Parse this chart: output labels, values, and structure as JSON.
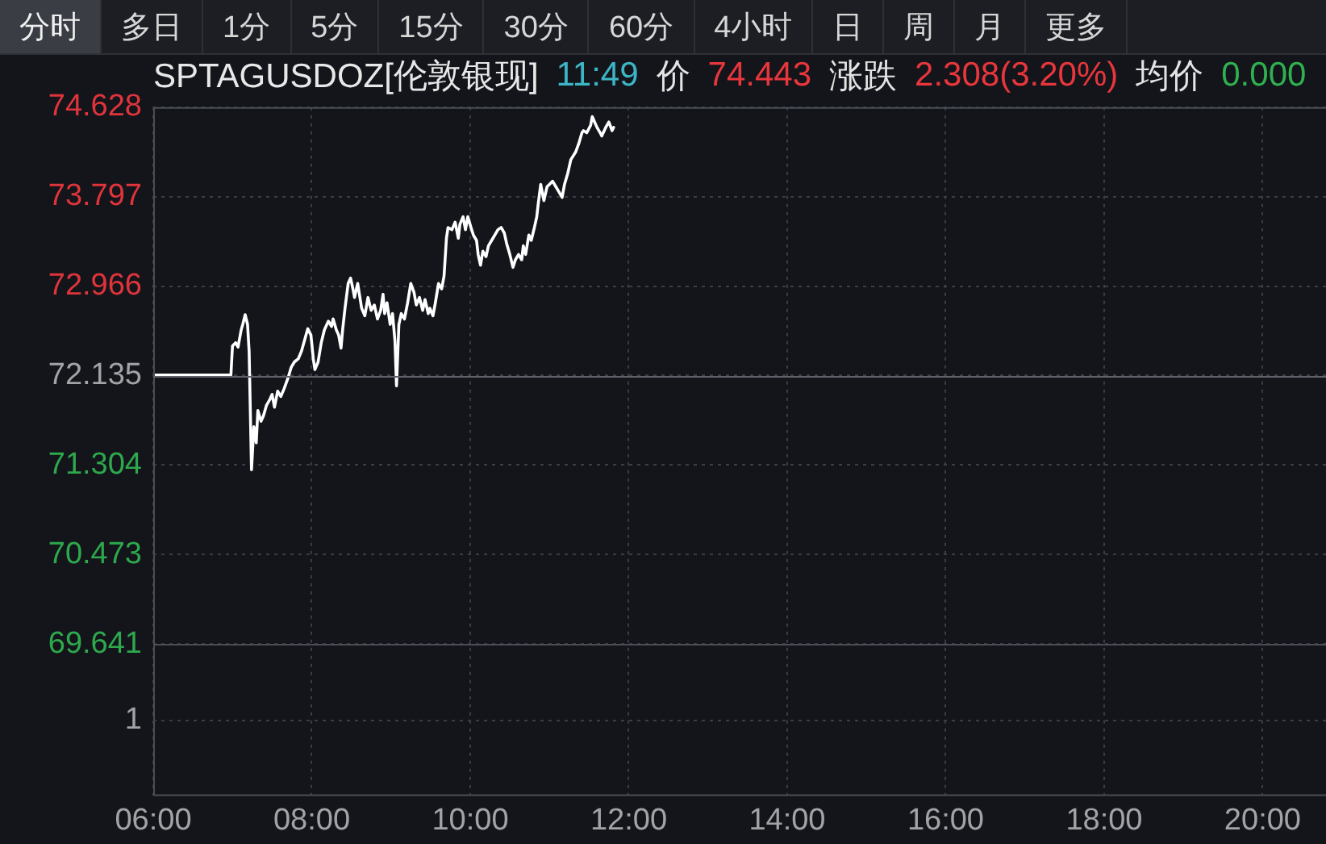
{
  "chart_data": {
    "type": "line",
    "title": "SPTAGUSDOZ[伦敦银现]",
    "subtitle": "11:49 价 74.443 涨跌 2.308(3.20%) 均价 0.000",
    "annotations": [
      "分时",
      "多日",
      "1分",
      "5分",
      "15分",
      "30分",
      "60分",
      "4小时",
      "日",
      "周",
      "月",
      "更多",
      "1"
    ],
    "x": [
      6,
      6.98,
      7.0,
      7.04,
      7.07,
      7.11,
      7.13,
      7.16,
      7.19,
      7.21,
      7.24,
      7.27,
      7.3,
      7.32,
      7.36,
      7.39,
      7.43,
      7.47,
      7.5,
      7.53,
      7.57,
      7.61,
      7.65,
      7.7,
      7.74,
      7.78,
      7.83,
      7.87,
      7.92,
      7.95,
      7.99,
      8.02,
      8.04,
      8.08,
      8.12,
      8.16,
      8.21,
      8.25,
      8.27,
      8.31,
      8.34,
      8.37,
      8.39,
      8.42,
      8.46,
      8.49,
      8.52,
      8.54,
      8.58,
      8.63,
      8.67,
      8.71,
      8.75,
      8.79,
      8.83,
      8.87,
      8.9,
      8.92,
      8.95,
      8.99,
      9.02,
      9.05,
      9.07,
      9.1,
      9.13,
      9.17,
      9.21,
      9.25,
      9.29,
      9.32,
      9.36,
      9.4,
      9.43,
      9.47,
      9.49,
      9.53,
      9.56,
      9.6,
      9.64,
      9.67,
      9.7,
      9.72,
      9.77,
      9.81,
      9.85,
      9.87,
      9.91,
      9.94,
      9.97,
      10.01,
      10.04,
      10.08,
      10.1,
      10.13,
      10.16,
      10.2,
      10.23,
      10.27,
      10.31,
      10.35,
      10.39,
      10.43,
      10.46,
      10.5,
      10.54,
      10.57,
      10.61,
      10.65,
      10.67,
      10.7,
      10.74,
      10.77,
      10.81,
      10.84,
      10.86,
      10.89,
      10.93,
      10.97,
      11.0,
      11.04,
      11.08,
      11.12,
      11.16,
      11.19,
      11.23,
      11.27,
      11.33,
      11.37,
      11.41,
      11.43,
      11.47,
      11.52,
      11.54,
      11.57,
      11.6,
      11.64,
      11.66,
      11.71,
      11.75,
      11.79,
      11.81
    ],
    "values": [
      72.14,
      72.14,
      72.41,
      72.44,
      72.4,
      72.56,
      72.61,
      72.7,
      72.61,
      72.36,
      71.26,
      71.66,
      71.51,
      71.81,
      71.71,
      71.76,
      71.86,
      71.91,
      71.96,
      71.84,
      71.99,
      71.94,
      72.01,
      72.11,
      72.21,
      72.26,
      72.29,
      72.36,
      72.49,
      72.57,
      72.51,
      72.29,
      72.19,
      72.26,
      72.44,
      72.56,
      72.64,
      72.59,
      72.66,
      72.56,
      72.51,
      72.39,
      72.56,
      72.76,
      72.99,
      73.04,
      72.94,
      72.86,
      72.99,
      72.76,
      72.69,
      72.86,
      72.74,
      72.79,
      72.66,
      72.74,
      72.89,
      72.71,
      72.81,
      72.61,
      72.71,
      72.46,
      72.04,
      72.61,
      72.71,
      72.66,
      72.81,
      72.99,
      72.91,
      72.79,
      72.86,
      72.74,
      72.84,
      72.71,
      72.76,
      72.69,
      72.81,
      72.99,
      72.94,
      73.06,
      73.41,
      73.51,
      73.49,
      73.56,
      73.41,
      73.54,
      73.61,
      73.49,
      73.61,
      73.51,
      73.44,
      73.39,
      73.26,
      73.16,
      73.29,
      73.24,
      73.34,
      73.39,
      73.44,
      73.49,
      73.51,
      73.46,
      73.36,
      73.26,
      73.14,
      73.21,
      73.26,
      73.21,
      73.34,
      73.26,
      73.44,
      73.39,
      73.51,
      73.61,
      73.74,
      73.91,
      73.76,
      73.89,
      73.91,
      73.94,
      73.89,
      73.84,
      73.79,
      73.91,
      74.01,
      74.14,
      74.21,
      74.29,
      74.39,
      74.41,
      74.39,
      74.46,
      74.54,
      74.49,
      74.44,
      74.39,
      74.36,
      74.44,
      74.49,
      74.41,
      74.44
    ],
    "color": "#ffffff",
    "xlim": [
      6,
      20.8
    ],
    "xticks": [
      {
        "value": 6,
        "label": "06:00"
      },
      {
        "value": 8,
        "label": "08:00"
      },
      {
        "value": 10,
        "label": "10:00"
      },
      {
        "value": 12,
        "label": "12:00"
      },
      {
        "value": 14,
        "label": "14:00"
      },
      {
        "value": 16,
        "label": "16:00"
      },
      {
        "value": 18,
        "label": "18:00"
      },
      {
        "value": 20,
        "label": "20:00"
      }
    ],
    "ylim": [
      68.23,
      74.628
    ],
    "yticks": [
      69.641,
      70.473,
      71.304,
      72.135,
      72.966,
      73.797,
      74.628
    ],
    "ref_lines": [
      {
        "axis": "y",
        "value": 72.135,
        "color": "#5f626a"
      },
      {
        "axis": "y",
        "value": 69.641,
        "color": "#4a4d55"
      }
    ],
    "grid": true,
    "legend": false
  }
}
